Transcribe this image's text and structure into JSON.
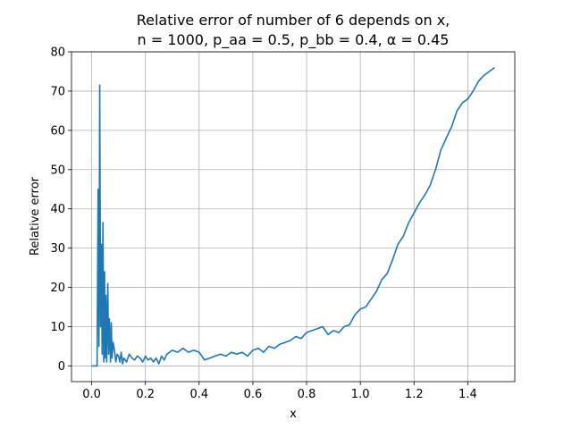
{
  "chart_data": {
    "type": "line",
    "title_lines": [
      "Relative error of number of 6 depends on x,",
      "n = 1000, p_aa = 0.5, p_bb = 0.4, α = 0.45"
    ],
    "xlabel": "x",
    "ylabel": "Relative error",
    "xlim": [
      -0.075,
      1.575
    ],
    "ylim": [
      -4,
      80
    ],
    "x_ticks": [
      0.0,
      0.2,
      0.4,
      0.6,
      0.8,
      1.0,
      1.2,
      1.4
    ],
    "x_tick_labels": [
      "0.0",
      "0.2",
      "0.4",
      "0.6",
      "0.8",
      "1.0",
      "1.2",
      "1.4"
    ],
    "y_ticks": [
      0,
      10,
      20,
      30,
      40,
      50,
      60,
      70,
      80
    ],
    "y_tick_labels": [
      "0",
      "10",
      "20",
      "30",
      "40",
      "50",
      "60",
      "70",
      "80"
    ],
    "grid": true,
    "line_color": "#1f77b4",
    "series": [
      {
        "x": [
          0.0,
          0.01,
          0.02,
          0.024,
          0.027,
          0.03,
          0.033,
          0.036,
          0.039,
          0.042,
          0.045,
          0.048,
          0.05,
          0.053,
          0.056,
          0.06,
          0.063,
          0.066,
          0.07,
          0.073,
          0.076,
          0.08,
          0.085,
          0.09,
          0.095,
          0.1,
          0.105,
          0.11,
          0.115,
          0.12,
          0.13,
          0.14,
          0.15,
          0.16,
          0.17,
          0.18,
          0.19,
          0.2,
          0.21,
          0.22,
          0.23,
          0.24,
          0.25,
          0.26,
          0.27,
          0.28,
          0.29,
          0.3,
          0.32,
          0.34,
          0.36,
          0.38,
          0.4,
          0.42,
          0.44,
          0.46,
          0.48,
          0.5,
          0.52,
          0.54,
          0.56,
          0.58,
          0.6,
          0.62,
          0.64,
          0.66,
          0.68,
          0.7,
          0.72,
          0.74,
          0.76,
          0.78,
          0.8,
          0.82,
          0.84,
          0.86,
          0.88,
          0.9,
          0.92,
          0.94,
          0.96,
          0.98,
          1.0,
          1.02,
          1.04,
          1.06,
          1.08,
          1.1,
          1.12,
          1.14,
          1.16,
          1.18,
          1.2,
          1.22,
          1.24,
          1.26,
          1.28,
          1.3,
          1.32,
          1.34,
          1.36,
          1.38,
          1.4,
          1.42,
          1.44,
          1.46,
          1.48,
          1.5
        ],
        "y": [
          0,
          0,
          0,
          45,
          5,
          71.5,
          10,
          31,
          3,
          36.5,
          1,
          24,
          2,
          18,
          1,
          21,
          3,
          12,
          1,
          11,
          2,
          6,
          4,
          1,
          3,
          2.5,
          1,
          3.5,
          0.5,
          2,
          1,
          3,
          2,
          1.5,
          2.5,
          2,
          1,
          2.5,
          1.5,
          2,
          1,
          2,
          0.5,
          2.5,
          1.5,
          3,
          3.5,
          4,
          3.5,
          4.5,
          3.5,
          4,
          3.5,
          1.5,
          2,
          2.5,
          3,
          2.5,
          3.5,
          3,
          3.5,
          2.5,
          4,
          4.5,
          3.5,
          5,
          4.5,
          5.5,
          6,
          6.5,
          7.5,
          7,
          8.5,
          9,
          9.5,
          10,
          8,
          9,
          8.5,
          10,
          10.5,
          13,
          14.5,
          15,
          17,
          19,
          22,
          23.5,
          27,
          31,
          33,
          36.5,
          39,
          41.5,
          43.5,
          46,
          50,
          55,
          58,
          61,
          65,
          67,
          68,
          70,
          72.5,
          74,
          75,
          76
        ]
      }
    ]
  }
}
